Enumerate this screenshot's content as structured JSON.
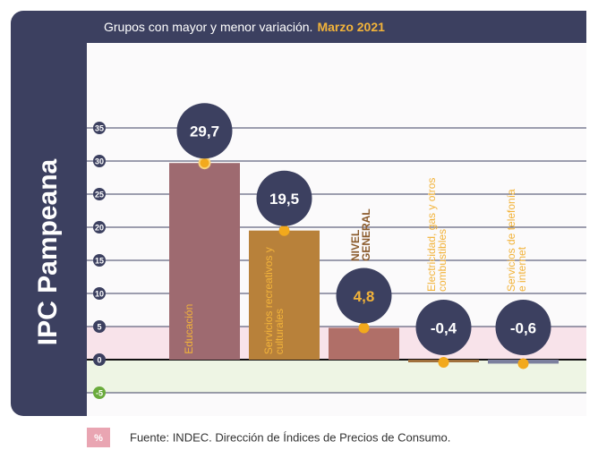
{
  "chart_data": {
    "type": "bar",
    "side_title": "IPC Pampeana",
    "title": "Grupos con mayor y menor variación.",
    "title_highlight": "Marzo 2021",
    "categories": [
      "Educación",
      "Servicios recreativos y culturales",
      "NIVEL GENERAL",
      "Electricidad, gas y otros combustibles",
      "Servicios de telefonía e internet"
    ],
    "values": [
      29.7,
      19.5,
      4.8,
      -0.4,
      -0.6
    ],
    "value_labels": [
      "29,7",
      "19,5",
      "4,8",
      "-0,4",
      "-0,6"
    ],
    "colors": [
      "#9e6a70",
      "#b8813a",
      "#b06f68",
      "#a0703c",
      "#7c809e"
    ],
    "ylim": [
      -6,
      36
    ],
    "yticks": [
      -5,
      0,
      5,
      10,
      15,
      20,
      25,
      30,
      35
    ],
    "grid": true,
    "source_badge": "%",
    "source": "Fuente: INDEC. Dirección de Índices de Precios de Consumo."
  }
}
